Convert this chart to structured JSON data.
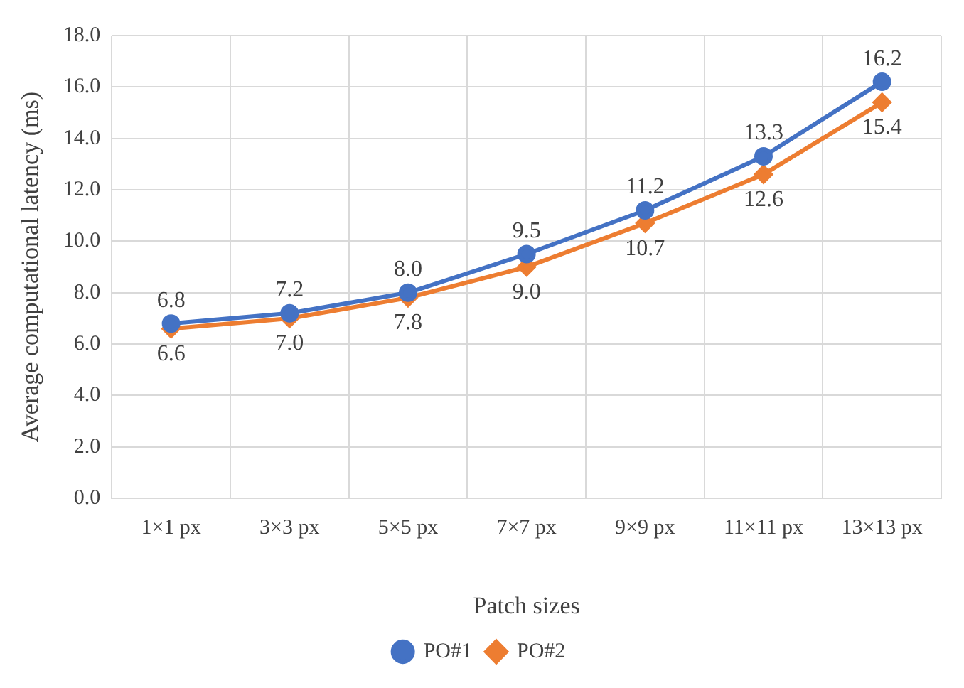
{
  "chart_data": {
    "type": "line",
    "xlabel": "Patch sizes",
    "ylabel": "Average computational latency (ms)",
    "categories": [
      "1×1 px",
      "3×3 px",
      "5×5 px",
      "7×7 px",
      "9×9 px",
      "11×11 px",
      "13×13 px"
    ],
    "series": [
      {
        "name": "PO#1",
        "color": "#4472c4",
        "marker": "circle",
        "values": [
          6.8,
          7.2,
          8.0,
          9.5,
          11.2,
          13.3,
          16.2
        ],
        "value_labels": [
          "6.8",
          "7.2",
          "8.0",
          "9.5",
          "11.2",
          "13.3",
          "16.2"
        ]
      },
      {
        "name": "PO#2",
        "color": "#ed7d31",
        "marker": "diamond",
        "values": [
          6.6,
          7.0,
          7.8,
          9.0,
          10.7,
          12.6,
          15.4
        ],
        "value_labels": [
          "6.6",
          "7.0",
          "7.8",
          "9.0",
          "10.7",
          "12.6",
          "15.4"
        ]
      }
    ],
    "ylim": [
      0,
      18
    ],
    "yticks": [
      {
        "value": 0,
        "label": "0.0"
      },
      {
        "value": 2,
        "label": "2.0"
      },
      {
        "value": 4,
        "label": "4.0"
      },
      {
        "value": 6,
        "label": "6.0"
      },
      {
        "value": 8,
        "label": "8.0"
      },
      {
        "value": 10,
        "label": "10.0"
      },
      {
        "value": 12,
        "label": "12.0"
      },
      {
        "value": 14,
        "label": "14.0"
      },
      {
        "value": 16,
        "label": "16.0"
      },
      {
        "value": 18,
        "label": "18.0"
      }
    ],
    "grid": true,
    "legend": "bottom",
    "line_style": "solid"
  }
}
